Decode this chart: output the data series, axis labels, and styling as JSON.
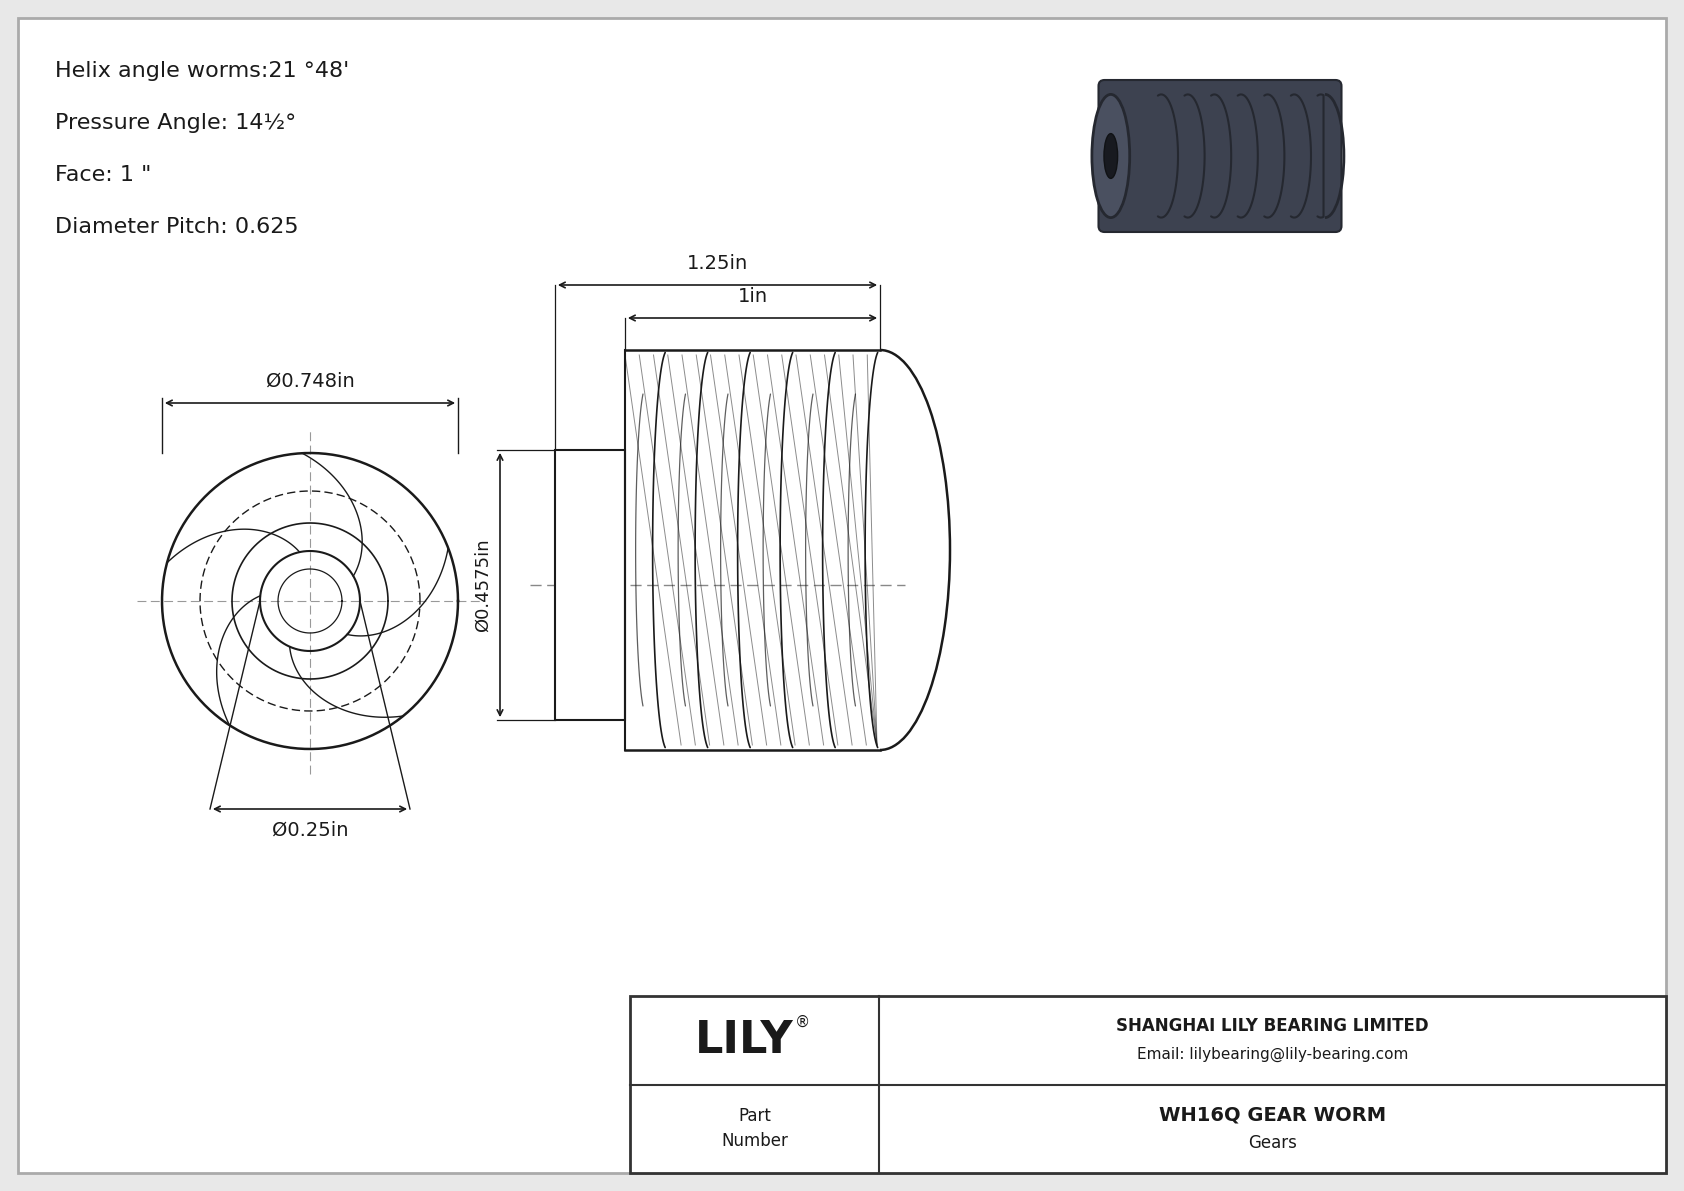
{
  "bg_color": "#e8e8e8",
  "inner_bg": "#ffffff",
  "line_color": "#1a1a1a",
  "dim_color": "#1a1a1a",
  "text_color": "#1a1a1a",
  "spec_lines": [
    "Helix angle worms:21 °48'",
    "Pressure Angle: 14½°",
    "Face: 1 \"",
    "Diameter Pitch: 0.625"
  ],
  "dims": {
    "front_outer_dia": "Ø0.748in",
    "front_bore_dia": "Ø0.25in",
    "side_dia": "Ø0.4575in",
    "side_len_full": "1.25in",
    "side_len_body": "1in"
  },
  "title_block": {
    "logo_text": "LILY",
    "logo_sup": "®",
    "company_name": "SHANGHAI LILY BEARING LIMITED",
    "email": "Email: lilybearing@lily-bearing.com",
    "part_label": "Part\nNumber",
    "part_number": "WH16Q GEAR WORM",
    "category": "Gears"
  }
}
